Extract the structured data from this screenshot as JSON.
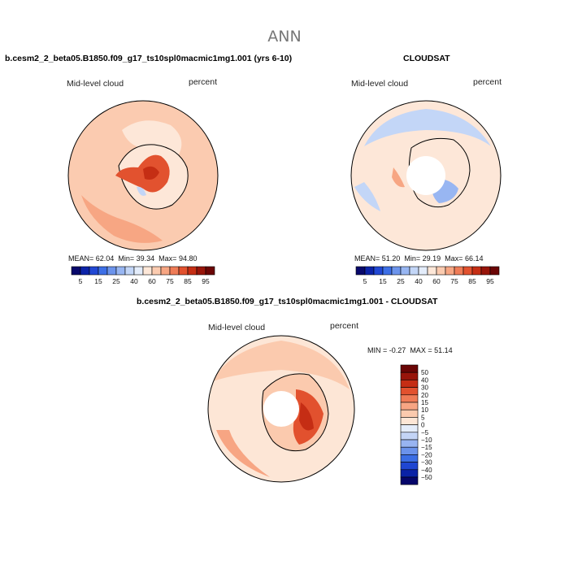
{
  "main_title": "ANN",
  "panels": [
    {
      "title": "b.cesm2_2_beta05.B1850.f09_g17_ts10spl0macmic1mg1.001 (yrs 6-10)",
      "field": "Mid-level cloud",
      "units": "percent",
      "mean_label": "MEAN=",
      "mean": "62.04",
      "min_label": "Min=",
      "min": "39.34",
      "max_label": "Max=",
      "max": "94.80",
      "colorbar_ticks": [
        "5",
        "15",
        "25",
        "40",
        "60",
        "75",
        "85",
        "95"
      ]
    },
    {
      "title": "CLOUDSAT",
      "field": "Mid-level cloud",
      "units": "percent",
      "mean_label": "MEAN=",
      "mean": "51.20",
      "min_label": "Min=",
      "min": "29.19",
      "max_label": "Max=",
      "max": "66.14",
      "colorbar_ticks": [
        "5",
        "15",
        "25",
        "40",
        "60",
        "75",
        "85",
        "95"
      ]
    }
  ],
  "diff_panel": {
    "title": "b.cesm2_2_beta05.B1850.f09_g17_ts10spl0macmic1mg1.001 - CLOUDSAT",
    "field": "Mid-level cloud",
    "units": "percent",
    "min_label": "MIN =",
    "min": "-0.27",
    "max_label": "MAX =",
    "max": "51.14",
    "colorbar_ticks": [
      "50",
      "40",
      "30",
      "20",
      "15",
      "10",
      "5",
      "0",
      "−5",
      "−10",
      "−15",
      "−20",
      "−30",
      "−40",
      "−50"
    ]
  },
  "chart_data": [
    {
      "type": "heatmap",
      "projection": "south polar stereographic",
      "title": "b.cesm2_2_beta05.B1850.f09_g17_ts10spl0macmic1mg1.001 (yrs 6-10)",
      "variable": "Mid-level cloud",
      "units": "percent",
      "mean": 62.04,
      "min": 39.34,
      "max": 94.8,
      "levels": [
        5,
        10,
        15,
        20,
        25,
        30,
        40,
        50,
        60,
        70,
        75,
        80,
        85,
        90,
        95
      ]
    },
    {
      "type": "heatmap",
      "projection": "south polar stereographic",
      "title": "CLOUDSAT",
      "variable": "Mid-level cloud",
      "units": "percent",
      "mean": 51.2,
      "min": 29.19,
      "max": 66.14,
      "levels": [
        5,
        10,
        15,
        20,
        25,
        30,
        40,
        50,
        60,
        70,
        75,
        80,
        85,
        90,
        95
      ]
    },
    {
      "type": "heatmap",
      "projection": "south polar stereographic",
      "title": "b.cesm2_2_beta05.B1850.f09_g17_ts10spl0macmic1mg1.001 - CLOUDSAT",
      "variable": "Mid-level cloud",
      "units": "percent",
      "min": -0.27,
      "max": 51.14,
      "levels": [
        -50,
        -40,
        -30,
        -20,
        -15,
        -10,
        -5,
        0,
        5,
        10,
        15,
        20,
        30,
        40,
        50
      ]
    }
  ],
  "palettes": {
    "abs": [
      "#08086b",
      "#0c23a8",
      "#2148d4",
      "#3d6fe6",
      "#6c94ec",
      "#98b6f2",
      "#c3d6f7",
      "#e3ecfa",
      "#fde7d8",
      "#fbcbb0",
      "#f7a683",
      "#ef7c57",
      "#e2522f",
      "#c52e14",
      "#98150a",
      "#6b0505"
    ],
    "diff": [
      "#06066a",
      "#0a22a6",
      "#1f46d2",
      "#3b6de4",
      "#6b92eb",
      "#98b4f1",
      "#c3d4f6",
      "#e4ecfa",
      "#fde6d6",
      "#fbcaae",
      "#f7a583",
      "#ef7b56",
      "#e2512e",
      "#c52d14",
      "#98140a",
      "#6a0505"
    ],
    "land_line": "#000000"
  }
}
